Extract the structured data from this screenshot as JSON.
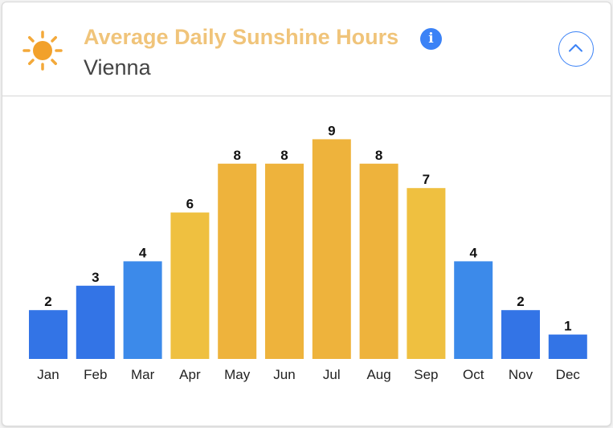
{
  "header": {
    "title": "Average Daily Sunshine Hours",
    "subtitle": "Vienna",
    "info_icon": "info-icon",
    "sun_icon": "sun-icon",
    "collapse_icon": "chevron-up-icon"
  },
  "colors": {
    "title": "#f0c47a",
    "accent": "#3b82f6",
    "sun_core": "#f2a12b",
    "sun_rays": "#f3a93a",
    "bar_cold": "#3374e6",
    "bar_cool": "#3c8aea",
    "bar_warm": "#efc040",
    "bar_hot": "#eeb33c"
  },
  "chart_data": {
    "type": "bar",
    "title": "Average Daily Sunshine Hours",
    "subtitle": "Vienna",
    "categories": [
      "Jan",
      "Feb",
      "Mar",
      "Apr",
      "May",
      "Jun",
      "Jul",
      "Aug",
      "Sep",
      "Oct",
      "Nov",
      "Dec"
    ],
    "values": [
      2,
      3,
      4,
      6,
      8,
      8,
      9,
      8,
      7,
      4,
      2,
      1
    ],
    "bar_colors": [
      "#3374e6",
      "#3374e6",
      "#3c8aea",
      "#efc040",
      "#eeb33c",
      "#eeb33c",
      "#eeb33c",
      "#eeb33c",
      "#efc040",
      "#3c8aea",
      "#3374e6",
      "#3374e6"
    ],
    "data_labels": true,
    "grid": false,
    "ylim": [
      0,
      9
    ]
  }
}
